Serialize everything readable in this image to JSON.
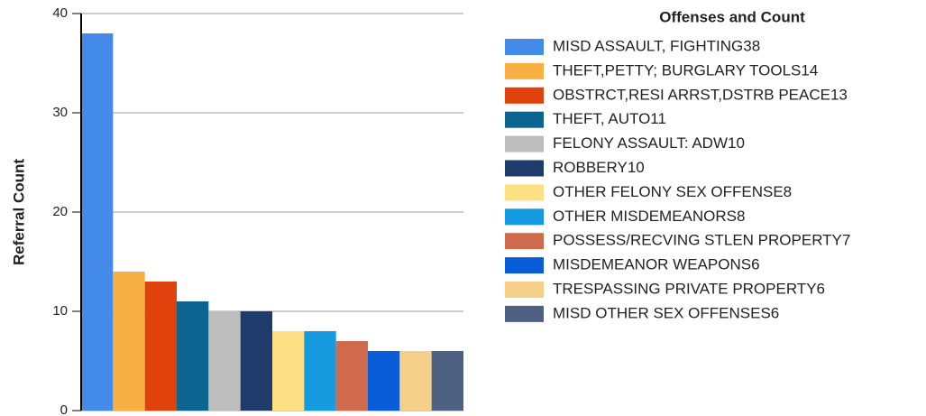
{
  "chart_data": {
    "type": "bar",
    "y_label": "Referral Count",
    "legend_title": "Offenses and Count",
    "legend": "right",
    "grid": true,
    "categories": [
      null
    ],
    "ylim": [
      0,
      40
    ],
    "yticks": [
      0,
      10,
      20,
      30,
      40
    ],
    "series": [
      {
        "name": "MISD ASSAULT, FIGHTING38",
        "color": "#438ae9",
        "values": [
          38
        ]
      },
      {
        "name": "THEFT,PETTY; BURGLARY TOOLS14",
        "color": "#f9b042",
        "values": [
          14
        ]
      },
      {
        "name": "OBSTRCT,RESI ARRST,DSTRB PEACE13",
        "color": "#e0420e",
        "values": [
          13
        ]
      },
      {
        "name": "THEFT, AUTO11",
        "color": "#0b6590",
        "values": [
          11
        ]
      },
      {
        "name": "FELONY ASSAULT: ADW10",
        "color": "#bdbdbd",
        "values": [
          10
        ]
      },
      {
        "name": "ROBBERY10",
        "color": "#1f3b6b",
        "values": [
          10
        ]
      },
      {
        "name": "OTHER FELONY SEX OFFENSE8",
        "color": "#fde083",
        "values": [
          8
        ]
      },
      {
        "name": "OTHER MISDEMEANORS8",
        "color": "#169ae0",
        "values": [
          8
        ]
      },
      {
        "name": "POSSESS/RECVING STLEN PROPERTY7",
        "color": "#cf6a4d",
        "values": [
          7
        ]
      },
      {
        "name": "MISDEMEANOR WEAPONS6",
        "color": "#0a5dd9",
        "values": [
          6
        ]
      },
      {
        "name": "TRESPASSING PRIVATE PROPERTY6",
        "color": "#f4d08b",
        "values": [
          6
        ]
      },
      {
        "name": "MISD OTHER SEX OFFENSES6",
        "color": "#4e6182",
        "values": [
          6
        ]
      }
    ]
  }
}
